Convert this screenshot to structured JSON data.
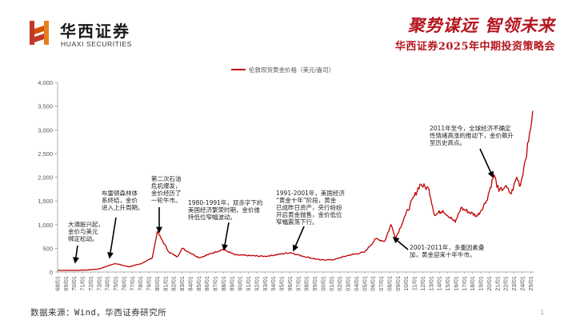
{
  "header": {
    "brand_cn": "华西证券",
    "brand_en": "HUAXI SECURITIES",
    "slogan": "聚势谋远 智领未来",
    "subtitle": "华西证券2025年中期投资策略会"
  },
  "footer": {
    "source": "数据来源：Wind，华西证券研究所",
    "page": "1"
  },
  "colors": {
    "accent": "#b5161f",
    "line": "#c00000"
  },
  "chart_data": {
    "type": "line",
    "series": [
      {
        "name": "伦敦现货黄金价格（美元/盎司）",
        "x": [
          "68/01",
          "70/01",
          "71/08",
          "73/01",
          "74/12",
          "76/08",
          "78/01",
          "79/06",
          "80/01",
          "80/09",
          "81/06",
          "82/06",
          "83/01",
          "85/02",
          "87/12",
          "89/06",
          "93/01",
          "96/02",
          "97/06",
          "99/08",
          "01/04",
          "03/01",
          "05/01",
          "06/05",
          "07/06",
          "08/03",
          "08/10",
          "09/12",
          "11/09",
          "12/10",
          "13/06",
          "14/06",
          "15/12",
          "16/08",
          "18/08",
          "19/09",
          "20/08",
          "21/03",
          "21/12",
          "22/09",
          "23/05",
          "23/10",
          "24/03",
          "24/10",
          "25/04"
        ],
        "values": [
          35,
          35,
          42,
          65,
          180,
          110,
          170,
          300,
          850,
          650,
          420,
          320,
          500,
          300,
          480,
          360,
          330,
          410,
          340,
          255,
          260,
          350,
          420,
          700,
          650,
          1000,
          720,
          1200,
          1850,
          1750,
          1200,
          1300,
          1050,
          1350,
          1180,
          1500,
          2050,
          1700,
          1800,
          1650,
          2000,
          1820,
          2200,
          2750,
          3400
        ]
      }
    ],
    "xlabels": [
      "68/01",
      "69/01",
      "70/01",
      "71/01",
      "72/01",
      "73/01",
      "74/01",
      "75/01",
      "76/01",
      "77/01",
      "78/01",
      "79/01",
      "80/01",
      "81/01",
      "82/01",
      "83/01",
      "84/01",
      "85/01",
      "86/01",
      "87/01",
      "88/01",
      "89/01",
      "90/01",
      "91/01",
      "92/01",
      "93/01",
      "94/01",
      "95/01",
      "96/01",
      "97/01",
      "98/01",
      "99/01",
      "00/01",
      "01/01",
      "02/01",
      "03/01",
      "04/01",
      "05/01",
      "06/01",
      "07/01",
      "08/01",
      "09/01",
      "10/01",
      "11/01",
      "12/01",
      "13/01",
      "14/01",
      "15/01",
      "16/01",
      "17/01",
      "18/01",
      "19/01",
      "20/01",
      "21/01",
      "22/01",
      "23/01",
      "24/01",
      "25/01"
    ],
    "yticks": [
      "0",
      "500",
      "1,000",
      "1,500",
      "2,000",
      "2,500",
      "3,000",
      "3,500",
      "4,000"
    ],
    "ylim": [
      0,
      4000
    ],
    "grid": false,
    "legend": "top-center",
    "annotations": [
      {
        "lines": [
          "大通胀兴起，",
          "金价与美元",
          "绑定松动。"
        ],
        "at": "71/08"
      },
      {
        "lines": [
          "布雷顿森林体",
          "系终结，金价",
          "进入上升周期。"
        ],
        "at": "74/01"
      },
      {
        "lines": [
          "第二次石油",
          "危机爆发，",
          "金价经历了",
          "一轮牛市。"
        ],
        "at": "80/01"
      },
      {
        "lines": [
          "1980-1991年，双赤字下的",
          "美国经济繁荣时期，金价维",
          "持低位窄幅波动。"
        ],
        "at": "86/06"
      },
      {
        "lines": [
          "1991-2001年，美国经济",
          "“黄金十年”阶段，黄金",
          "已成昨日资产，央行纷纷",
          "开启黄金抛售，金价低位",
          "窄幅震荡下行。"
        ],
        "at": "97/06"
      },
      {
        "lines": [
          "2001-2011年，多重因素叠",
          "加，黄金迎来十年牛市。"
        ],
        "at": "08/06"
      },
      {
        "lines": [
          "2011年至今，全球经济不确定",
          "性情绪高涨的推动下，金价飙升",
          "至历史高点。"
        ],
        "at": "20/04"
      }
    ]
  }
}
